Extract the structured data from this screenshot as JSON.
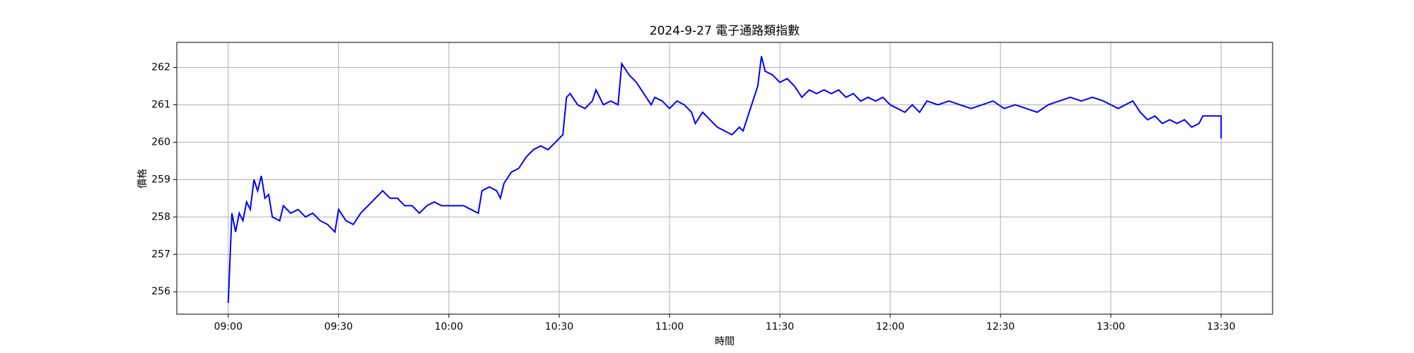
{
  "chart_data": {
    "type": "line",
    "title": "2024-9-27 電子通路類指數",
    "x_label": "時間",
    "y_label": "價格",
    "x": [
      "09:00",
      "09:01",
      "09:02",
      "09:03",
      "09:04",
      "09:05",
      "09:06",
      "09:07",
      "09:08",
      "09:09",
      "09:10",
      "09:11",
      "09:12",
      "09:14",
      "09:15",
      "09:17",
      "09:19",
      "09:21",
      "09:23",
      "09:25",
      "09:27",
      "09:29",
      "09:30",
      "09:32",
      "09:34",
      "09:36",
      "09:38",
      "09:40",
      "09:42",
      "09:44",
      "09:46",
      "09:48",
      "09:50",
      "09:52",
      "09:54",
      "09:56",
      "09:58",
      "10:00",
      "10:02",
      "10:04",
      "10:06",
      "10:08",
      "10:09",
      "10:11",
      "10:13",
      "10:14",
      "10:15",
      "10:17",
      "10:19",
      "10:21",
      "10:23",
      "10:25",
      "10:27",
      "10:29",
      "10:31",
      "10:32",
      "10:33",
      "10:35",
      "10:37",
      "10:39",
      "10:40",
      "10:42",
      "10:44",
      "10:46",
      "10:47",
      "10:49",
      "10:51",
      "10:53",
      "10:55",
      "10:56",
      "10:58",
      "11:00",
      "11:02",
      "11:04",
      "11:06",
      "11:07",
      "11:09",
      "11:11",
      "11:13",
      "11:15",
      "11:17",
      "11:19",
      "11:20",
      "11:22",
      "11:24",
      "11:25",
      "11:26",
      "11:28",
      "11:30",
      "11:32",
      "11:34",
      "11:36",
      "11:38",
      "11:40",
      "11:42",
      "11:44",
      "11:46",
      "11:48",
      "11:50",
      "11:52",
      "11:54",
      "11:56",
      "11:58",
      "12:00",
      "12:02",
      "12:04",
      "12:06",
      "12:08",
      "12:10",
      "12:13",
      "12:16",
      "12:19",
      "12:22",
      "12:25",
      "12:28",
      "12:31",
      "12:34",
      "12:37",
      "12:40",
      "12:43",
      "12:46",
      "12:49",
      "12:52",
      "12:55",
      "12:58",
      "13:00",
      "13:02",
      "13:04",
      "13:06",
      "13:08",
      "13:10",
      "13:12",
      "13:14",
      "13:16",
      "13:18",
      "13:20",
      "13:22",
      "13:24",
      "13:25",
      "13:30",
      "13:30"
    ],
    "series": [
      {
        "name": "電子通路類指數",
        "color": "#0000ff",
        "values": [
          255.7,
          258.1,
          257.6,
          258.1,
          257.9,
          258.4,
          258.2,
          259.0,
          258.7,
          259.1,
          258.5,
          258.6,
          258.0,
          257.9,
          258.3,
          258.1,
          258.2,
          258.0,
          258.1,
          257.9,
          257.8,
          257.6,
          258.2,
          257.9,
          257.8,
          258.1,
          258.3,
          258.5,
          258.7,
          258.5,
          258.5,
          258.3,
          258.3,
          258.1,
          258.3,
          258.4,
          258.3,
          258.3,
          258.3,
          258.3,
          258.2,
          258.1,
          258.7,
          258.8,
          258.7,
          258.5,
          258.9,
          259.2,
          259.3,
          259.6,
          259.8,
          259.9,
          259.8,
          260.0,
          260.2,
          261.2,
          261.3,
          261.0,
          260.9,
          261.1,
          261.4,
          261.0,
          261.1,
          261.0,
          262.1,
          261.8,
          261.6,
          261.3,
          261.0,
          261.2,
          261.1,
          260.9,
          261.1,
          261.0,
          260.8,
          260.5,
          260.8,
          260.6,
          260.4,
          260.3,
          260.2,
          260.4,
          260.3,
          260.9,
          261.5,
          262.3,
          261.9,
          261.8,
          261.6,
          261.7,
          261.5,
          261.2,
          261.4,
          261.3,
          261.4,
          261.3,
          261.4,
          261.2,
          261.3,
          261.1,
          261.2,
          261.1,
          261.2,
          261.0,
          260.9,
          260.8,
          261.0,
          260.8,
          261.1,
          261.0,
          261.1,
          261.0,
          260.9,
          261.0,
          261.1,
          260.9,
          261.0,
          260.9,
          260.8,
          261.0,
          261.1,
          261.2,
          261.1,
          261.2,
          261.1,
          261.0,
          260.9,
          261.0,
          261.1,
          260.8,
          260.6,
          260.7,
          260.5,
          260.6,
          260.5,
          260.6,
          260.4,
          260.5,
          260.7,
          260.7,
          260.1
        ]
      }
    ],
    "xlim": [
      "08:46",
      "13:44"
    ],
    "xticks": [
      "09:00",
      "09:30",
      "10:00",
      "10:30",
      "11:00",
      "11:30",
      "12:00",
      "12:30",
      "13:00",
      "13:30"
    ],
    "ylim": [
      255.4,
      262.67
    ],
    "yticks": [
      256,
      257,
      258,
      259,
      260,
      261,
      262
    ],
    "grid": true
  }
}
